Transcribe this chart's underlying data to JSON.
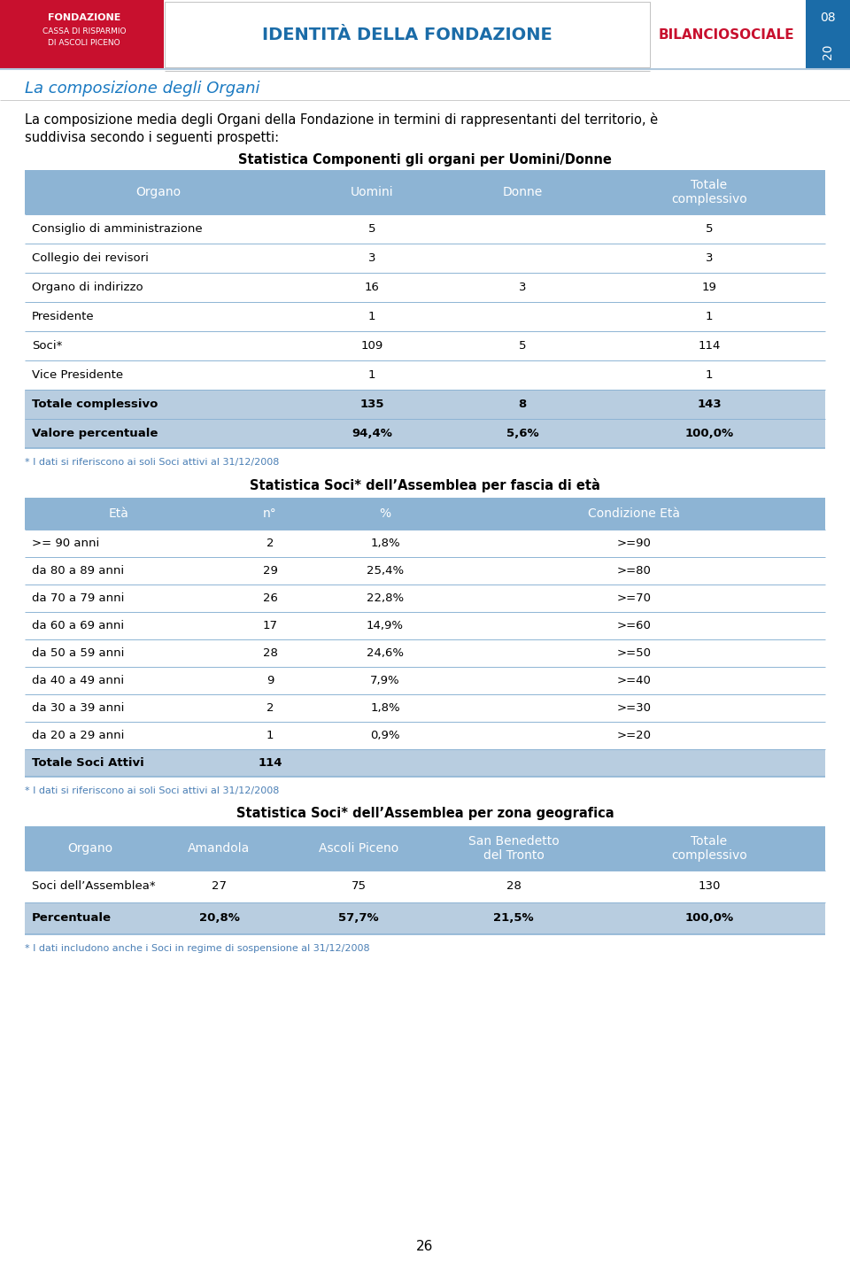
{
  "page_title": "La composizione degli Organi",
  "intro_line1": "La composizione media degli Organi della Fondazione in termini di rappresentanti del territorio, è",
  "intro_line2": "suddivisa secondo i seguenti prospetti:",
  "header_bg": "#8DB4D4",
  "row_bg_light": "#FFFFFF",
  "row_bg_alt": "#B8CDE0",
  "bg_color": "#FFFFFF",
  "note_color": "#4A7FB5",
  "divider_color": "#8DB4D4",
  "blue_header": "#1B6CA8",
  "red_accent": "#C8102E",
  "table1_title": "Statistica Componenti gli organi per Uomini/Donne",
  "table1_headers": [
    "Organo",
    "Uomini",
    "Donne",
    "Totale\ncomplessivo"
  ],
  "table1_rows": [
    [
      "Consiglio di amministrazione",
      "5",
      "",
      "5"
    ],
    [
      "Collegio dei revisori",
      "3",
      "",
      "3"
    ],
    [
      "Organo di indirizzo",
      "16",
      "3",
      "19"
    ],
    [
      "Presidente",
      "1",
      "",
      "1"
    ],
    [
      "Soci*",
      "109",
      "5",
      "114"
    ],
    [
      "Vice Presidente",
      "1",
      "",
      "1"
    ]
  ],
  "table1_footer_rows": [
    [
      "Totale complessivo",
      "135",
      "8",
      "143"
    ],
    [
      "Valore percentuale",
      "94,4%",
      "5,6%",
      "100,0%"
    ]
  ],
  "table1_note": "* I dati si riferiscono ai soli Soci attivi al 31/12/2008",
  "table2_title": "Statistica Soci* dell’Assemblea per fascia di età",
  "table2_headers": [
    "Età",
    "n°",
    "%",
    "Condizione Età"
  ],
  "table2_rows": [
    [
      ">= 90 anni",
      "2",
      "1,8%",
      ">=90"
    ],
    [
      "da 80 a 89 anni",
      "29",
      "25,4%",
      ">=80"
    ],
    [
      "da 70 a 79 anni",
      "26",
      "22,8%",
      ">=70"
    ],
    [
      "da 60 a 69 anni",
      "17",
      "14,9%",
      ">=60"
    ],
    [
      "da 50 a 59 anni",
      "28",
      "24,6%",
      ">=50"
    ],
    [
      "da 40 a 49 anni",
      "9",
      "7,9%",
      ">=40"
    ],
    [
      "da 30 a 39 anni",
      "2",
      "1,8%",
      ">=30"
    ],
    [
      "da 20 a 29 anni",
      "1",
      "0,9%",
      ">=20"
    ]
  ],
  "table2_footer_rows": [
    [
      "Totale Soci Attivi",
      "114",
      "",
      ""
    ]
  ],
  "table2_note": "* I dati si riferiscono ai soli Soci attivi al 31/12/2008",
  "table3_title": "Statistica Soci* dell’Assemblea per zona geografica",
  "table3_headers": [
    "Organo",
    "Amandola",
    "Ascoli Piceno",
    "San Benedetto\ndel Tronto",
    "Totale\ncomplessivo"
  ],
  "table3_rows": [
    [
      "Soci dell’Assemblea*",
      "27",
      "75",
      "28",
      "130"
    ]
  ],
  "table3_footer_rows": [
    [
      "Percentuale",
      "20,8%",
      "57,7%",
      "21,5%",
      "100,0%"
    ]
  ],
  "table3_note": "* I dati includono anche i Soci in regime di sospensione al 31/12/2008",
  "page_number": "26"
}
